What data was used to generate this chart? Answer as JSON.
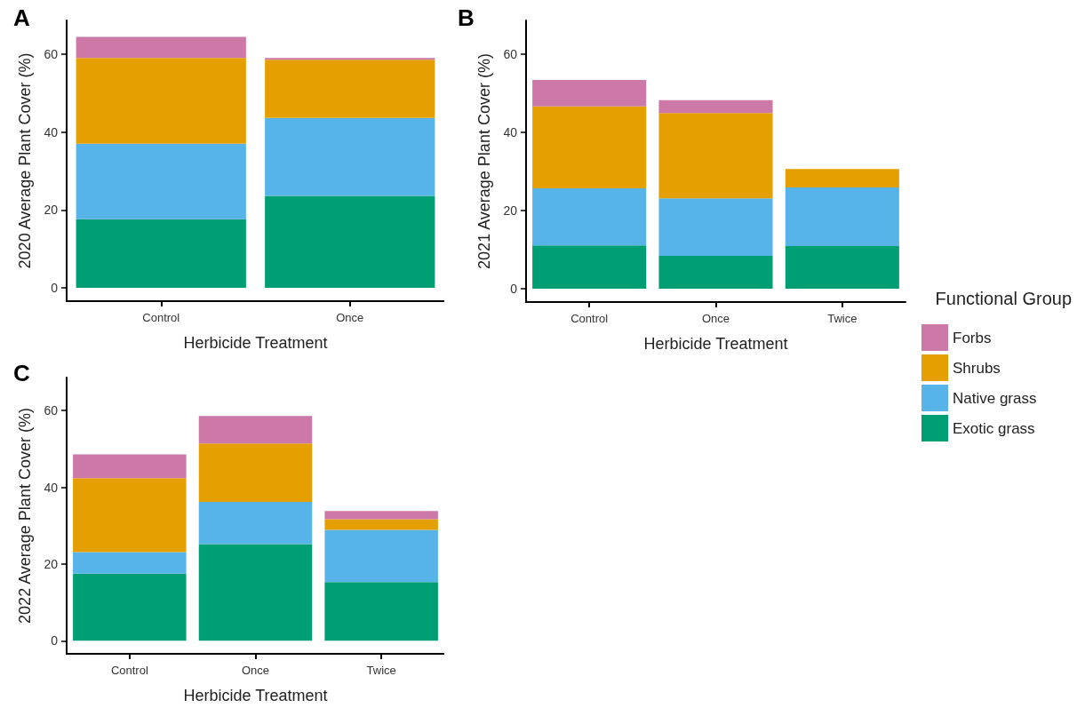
{
  "chart_data": [
    {
      "type": "bar",
      "title": "A",
      "xlabel": "Herbicide Treatment",
      "ylabel": "2020 Average Plant Cover (%)",
      "categories": [
        "Control",
        "Once"
      ],
      "stacked": true,
      "ylim": [
        -3.4,
        68.6
      ],
      "yticks": [
        0,
        20,
        40,
        60
      ],
      "grid": false,
      "legend": false,
      "series": [
        {
          "color": "#009e73",
          "values": [
            17.6,
            23.6
          ]
        },
        {
          "color": "#56b4e9",
          "values": [
            19.4,
            20.0
          ]
        },
        {
          "color": "#e69f00",
          "values": [
            22.0,
            14.9
          ]
        },
        {
          "color": "#cc79a7",
          "values": [
            5.4,
            0.5
          ]
        }
      ]
    },
    {
      "type": "bar",
      "title": "B",
      "xlabel": "Herbicide Treatment",
      "ylabel": "2021 Average Plant Cover (%)",
      "legend_title": "Functional Group",
      "categories": [
        "Control",
        "Once",
        "Twice"
      ],
      "stacked": true,
      "ylim": [
        -3.4,
        68.6
      ],
      "yticks": [
        0,
        20,
        40,
        60
      ],
      "grid": false,
      "legend": "right",
      "series": [
        {
          "name": "Exotic grass",
          "color": "#009e73",
          "values": [
            11.1,
            8.4,
            10.9
          ]
        },
        {
          "name": "Native grass",
          "color": "#56b4e9",
          "values": [
            14.6,
            14.7,
            15.0
          ]
        },
        {
          "name": "Shrubs",
          "color": "#e69f00",
          "values": [
            20.9,
            21.8,
            4.7
          ]
        },
        {
          "name": "Forbs",
          "color": "#cc79a7",
          "values": [
            6.8,
            3.3,
            0
          ]
        }
      ]
    },
    {
      "type": "bar",
      "title": "C",
      "xlabel": "Herbicide Treatment",
      "ylabel": "2022 Average Plant Cover (%)",
      "categories": [
        "Control",
        "Once",
        "Twice"
      ],
      "stacked": true,
      "ylim": [
        -3.4,
        68.6
      ],
      "yticks": [
        0,
        20,
        40,
        60
      ],
      "grid": false,
      "legend": false,
      "series": [
        {
          "color": "#009e73",
          "values": [
            17.5,
            25.2,
            15.3
          ]
        },
        {
          "color": "#56b4e9",
          "values": [
            5.6,
            11.0,
            13.6
          ]
        },
        {
          "color": "#e69f00",
          "values": [
            19.3,
            15.2,
            2.8
          ]
        },
        {
          "color": "#cc79a7",
          "values": [
            6.2,
            7.2,
            2.1
          ]
        }
      ]
    }
  ]
}
